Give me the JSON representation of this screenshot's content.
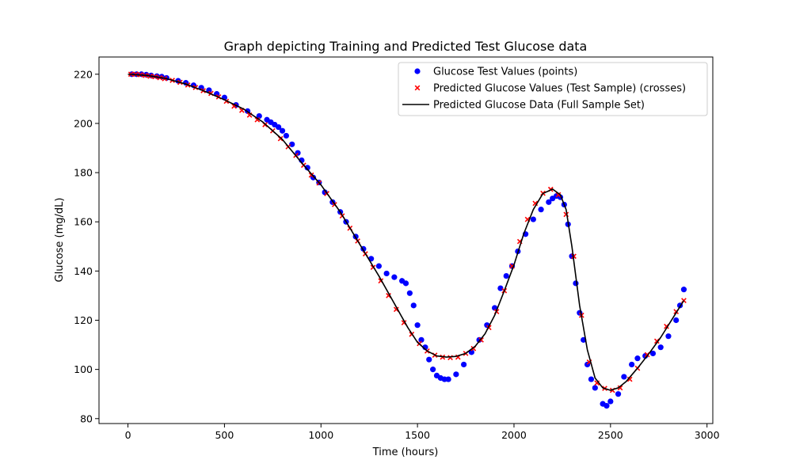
{
  "chart_data": {
    "type": "scatter",
    "title": "Graph depicting Training and Predicted Test Glucose data",
    "xlabel": "Time (hours)",
    "ylabel": "Glucose (mg/dL)",
    "xlim": [
      -150,
      3030
    ],
    "ylim": [
      78,
      227
    ],
    "xticks": [
      0,
      500,
      1000,
      1500,
      2000,
      2500,
      3000
    ],
    "yticks": [
      80,
      100,
      120,
      140,
      160,
      180,
      200,
      220
    ],
    "grid": false,
    "legend_position": "top-right",
    "series": [
      {
        "name": "Glucose Test Values (points)",
        "kind": "scatter-dot",
        "color": "#0000ff",
        "points": [
          [
            20,
            220
          ],
          [
            45,
            220
          ],
          [
            70,
            220
          ],
          [
            95,
            219.8
          ],
          [
            120,
            219.5
          ],
          [
            150,
            219.2
          ],
          [
            175,
            219
          ],
          [
            200,
            218.5
          ],
          [
            260,
            217.3
          ],
          [
            300,
            216.5
          ],
          [
            340,
            215.5
          ],
          [
            380,
            214.5
          ],
          [
            420,
            213.5
          ],
          [
            460,
            212
          ],
          [
            500,
            210.5
          ],
          [
            560,
            207.5
          ],
          [
            620,
            205
          ],
          [
            680,
            203
          ],
          [
            720,
            201.5
          ],
          [
            740,
            200.5
          ],
          [
            760,
            199.5
          ],
          [
            780,
            198.5
          ],
          [
            800,
            197
          ],
          [
            820,
            195
          ],
          [
            850,
            191.5
          ],
          [
            880,
            188
          ],
          [
            900,
            185
          ],
          [
            930,
            182
          ],
          [
            960,
            178
          ],
          [
            990,
            176
          ],
          [
            1020,
            172
          ],
          [
            1060,
            168
          ],
          [
            1100,
            164
          ],
          [
            1130,
            160
          ],
          [
            1180,
            154
          ],
          [
            1220,
            149
          ],
          [
            1260,
            145
          ],
          [
            1300,
            142
          ],
          [
            1340,
            139
          ],
          [
            1380,
            137.5
          ],
          [
            1420,
            136
          ],
          [
            1440,
            135
          ],
          [
            1460,
            131
          ],
          [
            1480,
            126
          ],
          [
            1500,
            118
          ],
          [
            1520,
            112
          ],
          [
            1540,
            109
          ],
          [
            1560,
            104
          ],
          [
            1580,
            100
          ],
          [
            1600,
            97.5
          ],
          [
            1620,
            96.5
          ],
          [
            1640,
            96
          ],
          [
            1660,
            96
          ],
          [
            1700,
            98
          ],
          [
            1740,
            102
          ],
          [
            1780,
            107
          ],
          [
            1820,
            112
          ],
          [
            1860,
            118
          ],
          [
            1900,
            125
          ],
          [
            1930,
            133
          ],
          [
            1960,
            138
          ],
          [
            1990,
            142
          ],
          [
            2020,
            148
          ],
          [
            2060,
            155
          ],
          [
            2100,
            161
          ],
          [
            2140,
            165
          ],
          [
            2180,
            168
          ],
          [
            2200,
            169.5
          ],
          [
            2220,
            170.5
          ],
          [
            2240,
            170
          ],
          [
            2260,
            167
          ],
          [
            2280,
            159
          ],
          [
            2300,
            146
          ],
          [
            2320,
            135
          ],
          [
            2340,
            123
          ],
          [
            2360,
            112
          ],
          [
            2380,
            102
          ],
          [
            2400,
            96
          ],
          [
            2420,
            92.5
          ],
          [
            2460,
            86
          ],
          [
            2480,
            85.2
          ],
          [
            2500,
            87
          ],
          [
            2540,
            90
          ],
          [
            2570,
            97
          ],
          [
            2610,
            102
          ],
          [
            2640,
            104.5
          ],
          [
            2680,
            105.5
          ],
          [
            2720,
            106.5
          ],
          [
            2760,
            109
          ],
          [
            2800,
            113.5
          ],
          [
            2840,
            120
          ],
          [
            2860,
            126
          ],
          [
            2880,
            132.5
          ]
        ]
      },
      {
        "name": "Predicted Glucose Values (Test Sample) (crosses)",
        "kind": "scatter-cross",
        "color": "#ff0000",
        "points": [
          [
            15,
            220
          ],
          [
            40,
            220
          ],
          [
            65,
            219.8
          ],
          [
            90,
            219.5
          ],
          [
            115,
            219.2
          ],
          [
            140,
            219
          ],
          [
            165,
            218.6
          ],
          [
            190,
            218.2
          ],
          [
            230,
            217.5
          ],
          [
            270,
            216.7
          ],
          [
            310,
            215.6
          ],
          [
            350,
            214.6
          ],
          [
            390,
            213.3
          ],
          [
            430,
            212.2
          ],
          [
            470,
            210.8
          ],
          [
            510,
            209
          ],
          [
            550,
            207
          ],
          [
            590,
            205.3
          ],
          [
            630,
            203.4
          ],
          [
            670,
            201.5
          ],
          [
            710,
            199.5
          ],
          [
            750,
            197
          ],
          [
            790,
            193.8
          ],
          [
            830,
            190.5
          ],
          [
            870,
            187
          ],
          [
            910,
            183
          ],
          [
            950,
            179
          ],
          [
            990,
            175.8
          ],
          [
            1030,
            171.5
          ],
          [
            1070,
            167
          ],
          [
            1110,
            162.4
          ],
          [
            1150,
            157.4
          ],
          [
            1190,
            152.2
          ],
          [
            1230,
            147
          ],
          [
            1270,
            141.5
          ],
          [
            1310,
            136
          ],
          [
            1350,
            130
          ],
          [
            1390,
            124.4
          ],
          [
            1430,
            119
          ],
          [
            1470,
            114.3
          ],
          [
            1510,
            110.5
          ],
          [
            1550,
            107.5
          ],
          [
            1590,
            105.8
          ],
          [
            1630,
            105
          ],
          [
            1670,
            104.8
          ],
          [
            1710,
            105
          ],
          [
            1750,
            106.5
          ],
          [
            1790,
            108.5
          ],
          [
            1830,
            112
          ],
          [
            1870,
            117
          ],
          [
            1910,
            123.5
          ],
          [
            1950,
            132
          ],
          [
            1990,
            142
          ],
          [
            2030,
            152
          ],
          [
            2070,
            161
          ],
          [
            2110,
            167.5
          ],
          [
            2150,
            171.6
          ],
          [
            2190,
            173.2
          ],
          [
            2230,
            171
          ],
          [
            2270,
            163
          ],
          [
            2310,
            146
          ],
          [
            2350,
            122
          ],
          [
            2390,
            103
          ],
          [
            2430,
            94.5
          ],
          [
            2470,
            92.3
          ],
          [
            2510,
            91.5
          ],
          [
            2550,
            92.5
          ],
          [
            2600,
            96
          ],
          [
            2640,
            100.5
          ],
          [
            2690,
            106
          ],
          [
            2740,
            111.5
          ],
          [
            2790,
            117.5
          ],
          [
            2840,
            123.5
          ],
          [
            2880,
            128
          ]
        ]
      },
      {
        "name": "Predicted Glucose Data (Full Sample Set)",
        "kind": "line",
        "color": "#000000",
        "points": [
          [
            0,
            220
          ],
          [
            100,
            219.5
          ],
          [
            200,
            218.2
          ],
          [
            300,
            216
          ],
          [
            400,
            213
          ],
          [
            500,
            209.6
          ],
          [
            600,
            205.8
          ],
          [
            700,
            200.5
          ],
          [
            800,
            193.5
          ],
          [
            900,
            184
          ],
          [
            1000,
            175
          ],
          [
            1100,
            164
          ],
          [
            1200,
            151
          ],
          [
            1300,
            138
          ],
          [
            1400,
            124
          ],
          [
            1450,
            117
          ],
          [
            1500,
            111
          ],
          [
            1550,
            107.5
          ],
          [
            1600,
            105.5
          ],
          [
            1650,
            105
          ],
          [
            1700,
            105.3
          ],
          [
            1750,
            106.5
          ],
          [
            1800,
            109.5
          ],
          [
            1850,
            114.5
          ],
          [
            1900,
            122
          ],
          [
            1950,
            132
          ],
          [
            2000,
            142.5
          ],
          [
            2050,
            155
          ],
          [
            2100,
            165
          ],
          [
            2150,
            171.5
          ],
          [
            2200,
            173.3
          ],
          [
            2240,
            171
          ],
          [
            2270,
            165
          ],
          [
            2300,
            150
          ],
          [
            2340,
            126
          ],
          [
            2380,
            108
          ],
          [
            2420,
            96.5
          ],
          [
            2460,
            92.5
          ],
          [
            2500,
            91.5
          ],
          [
            2540,
            92.5
          ],
          [
            2580,
            95
          ],
          [
            2640,
            100.5
          ],
          [
            2700,
            106.5
          ],
          [
            2760,
            113
          ],
          [
            2820,
            120.5
          ],
          [
            2880,
            128
          ]
        ]
      }
    ]
  }
}
